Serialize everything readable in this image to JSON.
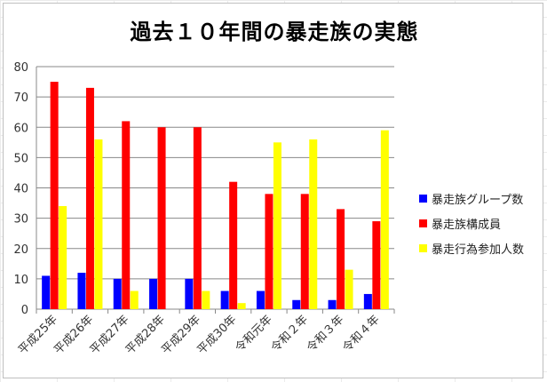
{
  "chart_data": {
    "type": "bar",
    "title": "過去１０年間の暴走族の実態",
    "categories": [
      "平成25年",
      "平成26年",
      "平成27年",
      "平成28年",
      "平成29年",
      "平成30年",
      "令和元年",
      "令和２年",
      "令和３年",
      "令和４年"
    ],
    "series": [
      {
        "name": "暴走族グループ数",
        "color": "#0000ff",
        "values": [
          11,
          12,
          10,
          10,
          10,
          6,
          6,
          3,
          3,
          5
        ]
      },
      {
        "name": "暴走族構成員",
        "color": "#ff0000",
        "values": [
          75,
          73,
          62,
          60,
          60,
          42,
          38,
          38,
          33,
          29
        ]
      },
      {
        "name": "暴走行為参加人数",
        "color": "#ffff00",
        "values": [
          34,
          56,
          6,
          0,
          6,
          2,
          55,
          56,
          13,
          59
        ]
      }
    ],
    "yticks": [
      0,
      10,
      20,
      30,
      40,
      50,
      60,
      70,
      80
    ],
    "ylim": [
      0,
      80
    ],
    "grid": true,
    "legend_position": "right"
  }
}
